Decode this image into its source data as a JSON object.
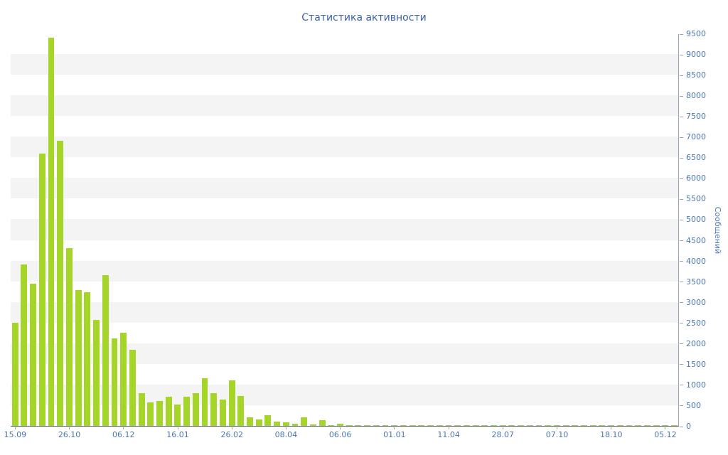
{
  "colors": {
    "bar": "#a5d529",
    "title_text": "#3a62a8",
    "tick_text": "#4a76b4",
    "axis_x": "#4a5580",
    "axis_y": "#98a4b8",
    "band": "#f4f4f4",
    "bg": "#ffffff"
  },
  "chart_data": {
    "type": "bar",
    "title": "Статистика активности",
    "xlabel": "",
    "ylabel": "Сообщений",
    "ylim": [
      0,
      9500
    ],
    "y_step": 500,
    "y_ticks": [
      0,
      500,
      1000,
      1500,
      2000,
      2500,
      3000,
      3500,
      4000,
      4500,
      5000,
      5500,
      6000,
      6500,
      7000,
      7500,
      8000,
      8500,
      9000,
      9500
    ],
    "y_axis_position": "right",
    "grid": "alternating-horizontal-bands",
    "legend": "none",
    "x_tick_labels": [
      "15.09",
      "26.10",
      "06.12",
      "16.01",
      "26.02",
      "08.04",
      "06.06",
      "01.01",
      "11.04",
      "28.07",
      "07.10",
      "18.10",
      "05.12"
    ],
    "x_tick_every": 6,
    "values": [
      2500,
      3900,
      3450,
      6600,
      9400,
      6900,
      4300,
      3280,
      3230,
      2560,
      3650,
      2120,
      2260,
      1840,
      800,
      560,
      610,
      700,
      520,
      700,
      790,
      1150,
      800,
      630,
      1100,
      720,
      210,
      150,
      260,
      110,
      90,
      45,
      210,
      35,
      130,
      25,
      60,
      15,
      10,
      8,
      6,
      5,
      8,
      5,
      4,
      6,
      5,
      4,
      5,
      6,
      4,
      5,
      4,
      6,
      5,
      4,
      5,
      4,
      6,
      5,
      4,
      5,
      6,
      5,
      4,
      5,
      4,
      5,
      6,
      5,
      4,
      5,
      4,
      12
    ]
  }
}
